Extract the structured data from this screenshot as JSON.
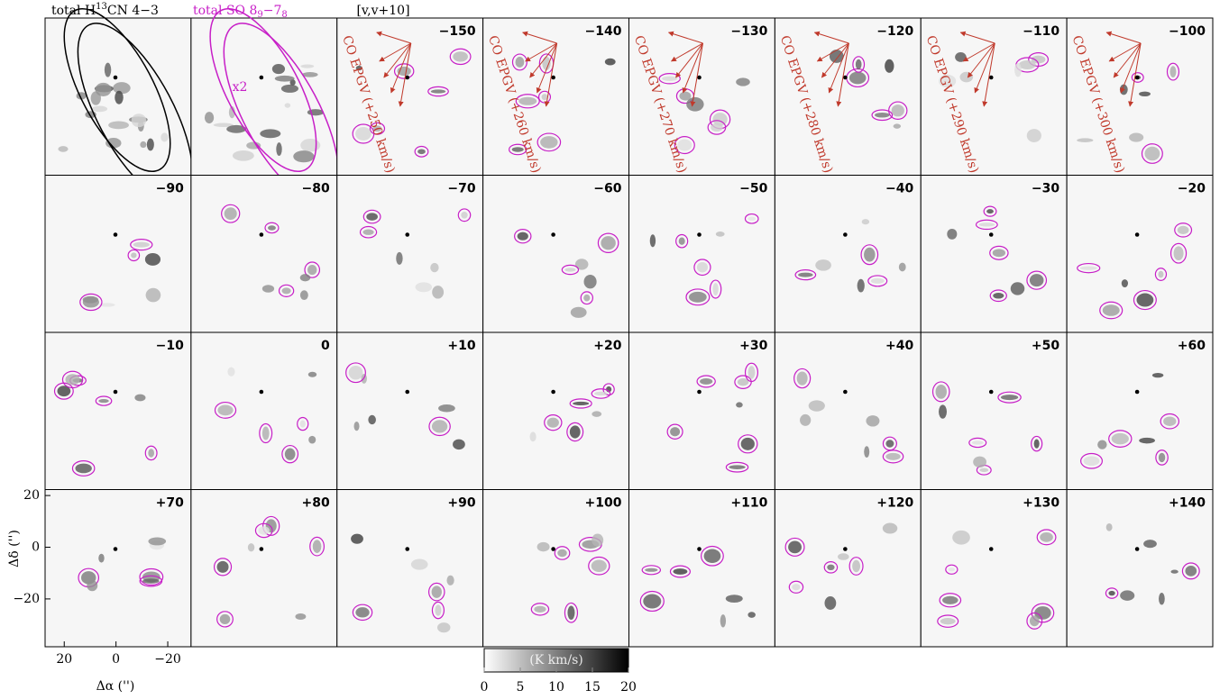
{
  "header": {
    "h13cn": {
      "prefix": "total H",
      "sup": "13",
      "suffix": "CN 4−3"
    },
    "so": {
      "prefix": "total SO 8",
      "sub1": "9",
      "mid": "−7",
      "sub2": "8"
    },
    "range": "[v,v+10]"
  },
  "panel_annotation": "x2",
  "channels": [
    "−150",
    "−140",
    "−130",
    "−120",
    "−110",
    "−100",
    "−90",
    "−80",
    "−70",
    "−60",
    "−50",
    "−40",
    "−30",
    "−20",
    "−10",
    "0",
    "+10",
    "+20",
    "+30",
    "+40",
    "+50",
    "+60",
    "+70",
    "+80",
    "+90",
    "+100",
    "+110",
    "+120",
    "+130",
    "+140"
  ],
  "epgv": [
    "CO EPGV (+250 km/s)",
    "CO EPGV (+260 km/s)",
    "CO EPGV (+270 km/s)",
    "CO EPGV (+280 km/s)",
    "CO EPGV (+290 km/s)",
    "CO EPGV (+300 km/s)"
  ],
  "axes": {
    "ylabel": "Δδ ('')",
    "xlabel": "Δα ('')",
    "xlim": [
      27.4,
      -29
    ],
    "ylim": [
      -38.5,
      22.3
    ],
    "xticks": [
      20,
      0,
      {
        "value": -20,
        "label": "−20"
      }
    ],
    "yticks": [
      20,
      0,
      {
        "value": -20,
        "label": "−20"
      }
    ]
  },
  "colorbar": {
    "label": "(K km/s)",
    "lim": [
      0,
      20
    ],
    "ticks": [
      0,
      5,
      10,
      15,
      20
    ]
  }
}
